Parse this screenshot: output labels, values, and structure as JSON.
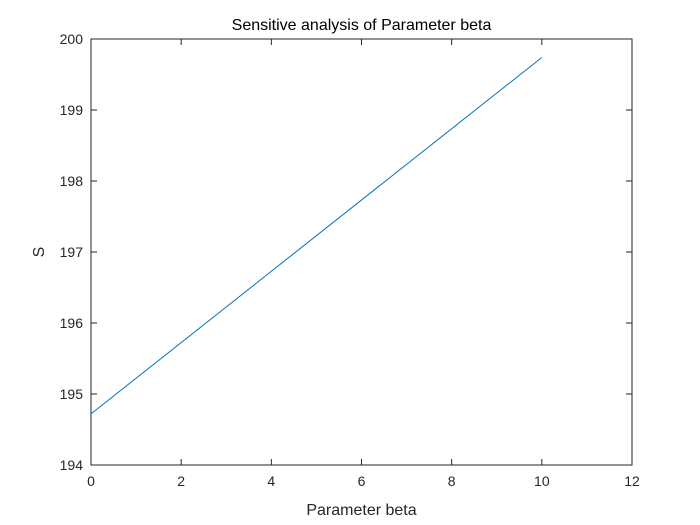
{
  "chart_data": {
    "type": "line",
    "title": "Sensitive analysis of Parameter beta",
    "xlabel": "Parameter beta",
    "ylabel": "S",
    "xlim": [
      0,
      12
    ],
    "ylim": [
      194,
      200
    ],
    "xticks": [
      0,
      2,
      4,
      6,
      8,
      10,
      12
    ],
    "yticks": [
      194,
      195,
      196,
      197,
      198,
      199,
      200
    ],
    "grid": false,
    "series": [
      {
        "color": "#0072BD",
        "x": [
          0,
          10
        ],
        "y": [
          194.72,
          199.74
        ]
      }
    ]
  }
}
